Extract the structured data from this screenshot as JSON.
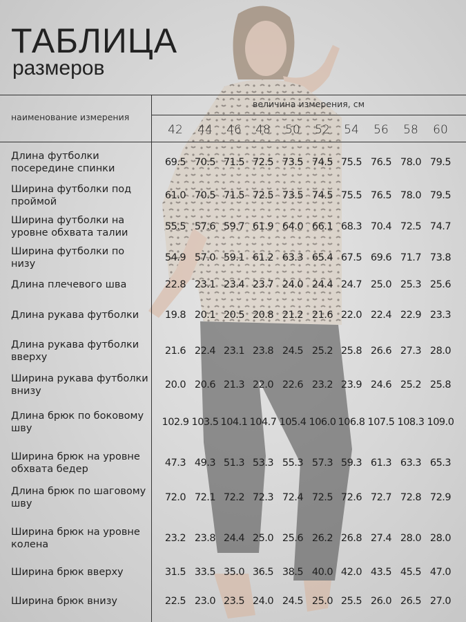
{
  "header": {
    "title": "ТАБЛИЦА",
    "subtitle": "размеров"
  },
  "table": {
    "measure_header": "наименование измерения",
    "unit_header": "величина измерения, см",
    "sizes": [
      "42",
      "44",
      "46",
      "48",
      "50",
      "52",
      "54",
      "56",
      "58",
      "60"
    ],
    "rows": [
      {
        "label": "Длина футболки посередине спинки",
        "values": [
          "69.5",
          "70.5",
          "71.5",
          "72.5",
          "73.5",
          "74.5",
          "75.5",
          "76.5",
          "78.0",
          "79.5"
        ]
      },
      {
        "label": "Ширина футболки под проймой",
        "values": [
          "61.0",
          "70.5",
          "71.5",
          "72.5",
          "73.5",
          "74.5",
          "75.5",
          "76.5",
          "78.0",
          "79.5"
        ]
      },
      {
        "label": "Ширина футболки на уровне обхвата талии",
        "values": [
          "55.5",
          "57.6",
          "59.7",
          "61.9",
          "64.0",
          "66.1",
          "68.3",
          "70.4",
          "72.5",
          "74.7"
        ]
      },
      {
        "label": "Ширина футболки по низу",
        "values": [
          "54.9",
          "57.0",
          "59.1",
          "61.2",
          "63.3",
          "65.4",
          "67.5",
          "69.6",
          "71.7",
          "73.8"
        ]
      },
      {
        "label": "Длина плечевого шва",
        "values": [
          "22.8",
          "23.1",
          "23.4",
          "23.7",
          "24.0",
          "24.4",
          "24.7",
          "25.0",
          "25.3",
          "25.6"
        ]
      },
      {
        "label": "Длина рукава футболки",
        "values": [
          "19.8",
          "20.1",
          "20.5",
          "20.8",
          "21.2",
          "21.6",
          "22.0",
          "22.4",
          "22.9",
          "23.3"
        ]
      },
      {
        "label": "Длина рукава футболки вверху",
        "values": [
          "21.6",
          "22.4",
          "23.1",
          "23.8",
          "24.5",
          "25.2",
          "25.8",
          "26.6",
          "27.3",
          "28.0"
        ]
      },
      {
        "label": "Ширина рукава футболки внизу",
        "values": [
          "20.0",
          "20.6",
          "21.3",
          "22.0",
          "22.6",
          "23.2",
          "23.9",
          "24.6",
          "25.2",
          "25.8"
        ]
      },
      {
        "label": "Длина брюк по боковому шву",
        "values": [
          "102.9",
          "103.5",
          "104.1",
          "104.7",
          "105.4",
          "106.0",
          "106.8",
          "107.5",
          "108.3",
          "109.0"
        ]
      },
      {
        "label": "Ширина брюк на уровне обхвата бедер",
        "values": [
          "47.3",
          "49.3",
          "51.3",
          "53.3",
          "55.3",
          "57.3",
          "59.3",
          "61.3",
          "63.3",
          "65.3"
        ]
      },
      {
        "label": "Длина брюк по шаговому шву",
        "values": [
          "72.0",
          "72.1",
          "72.2",
          "72.3",
          "72.4",
          "72.5",
          "72.6",
          "72.7",
          "72.8",
          "72.9"
        ]
      },
      {
        "label": "Ширина брюк на уровне колена",
        "values": [
          "23.2",
          "23.8",
          "24.4",
          "25.0",
          "25.6",
          "26.2",
          "26.8",
          "27.4",
          "28.0",
          "28.0"
        ]
      },
      {
        "label": "Ширина брюк вверху",
        "values": [
          "31.5",
          "33.5",
          "35.0",
          "36.5",
          "38.5",
          "40.0",
          "42.0",
          "43.5",
          "45.5",
          "47.0"
        ]
      },
      {
        "label": "Ширина брюк внизу",
        "values": [
          "22.5",
          "23.0",
          "23.5",
          "24.0",
          "24.5",
          "25.0",
          "25.5",
          "26.0",
          "26.5",
          "27.0"
        ]
      }
    ]
  },
  "colors": {
    "background": "#d8d8d8",
    "text": "#1e1e1e",
    "top_print": "#c9b9a6",
    "pants": "#4a4a4a"
  }
}
